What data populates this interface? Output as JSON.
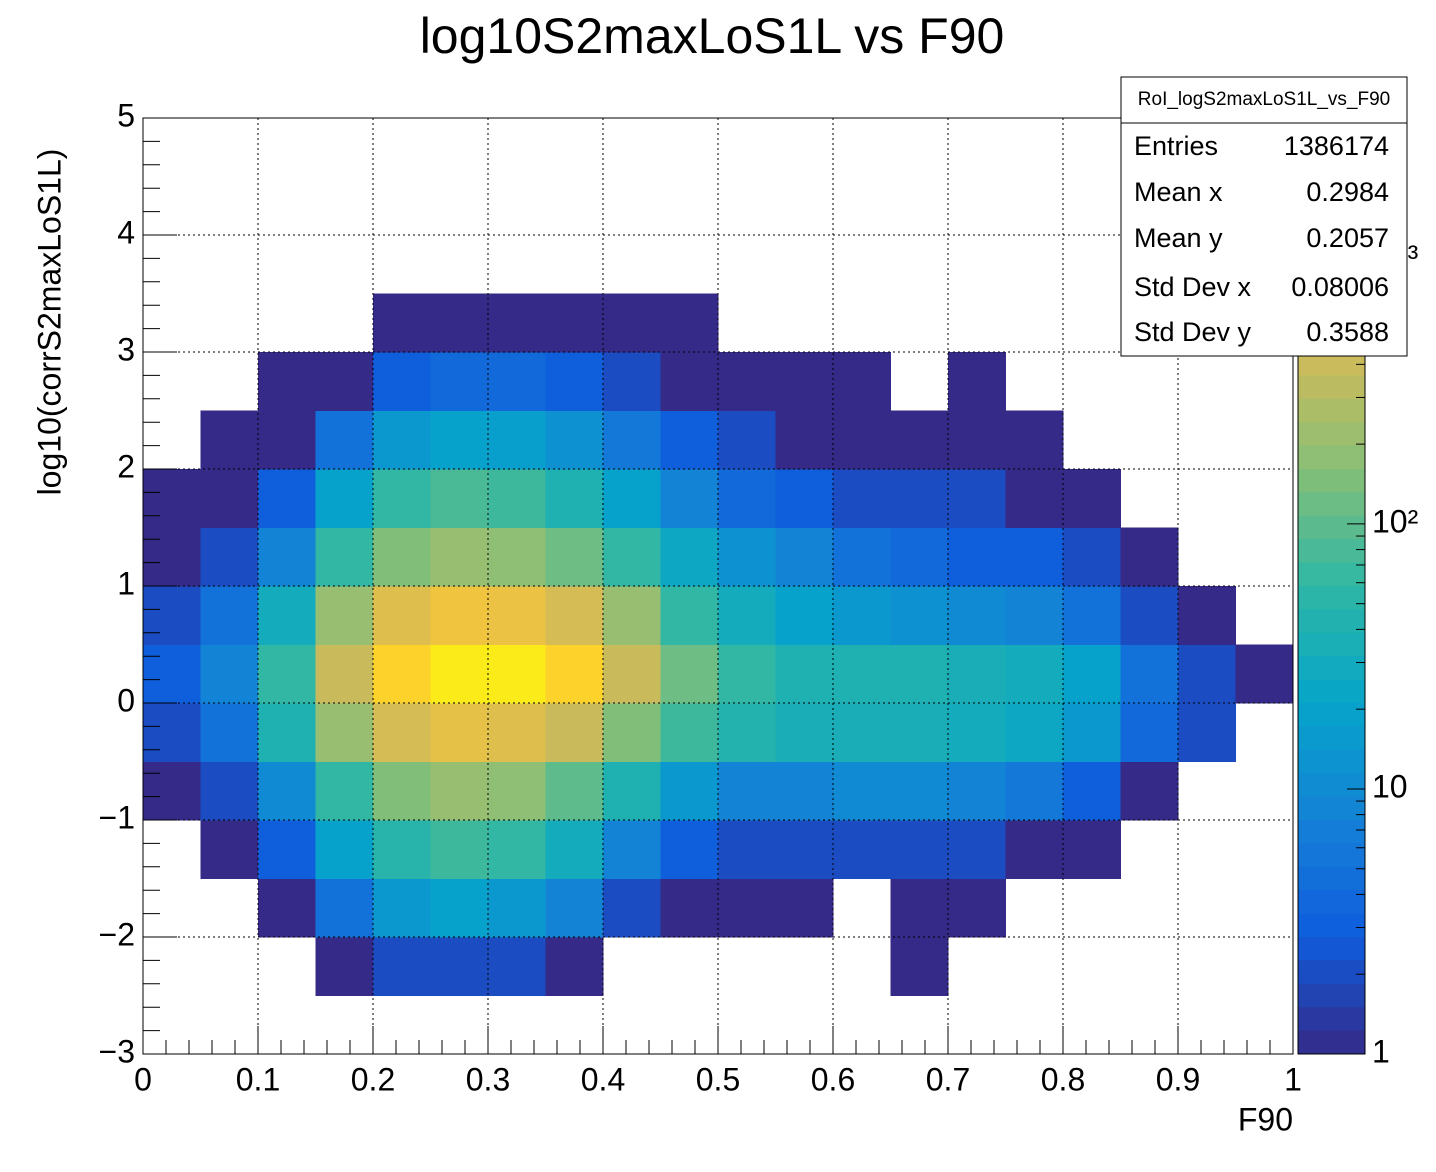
{
  "chart_data": {
    "type": "heatmap",
    "title": "log10S2maxLoS1L vs F90",
    "x_label": "F90",
    "y_label": "log10(corrS2maxLoS1L)",
    "xlim": [
      0,
      1
    ],
    "ylim": [
      -3,
      5
    ],
    "xticks": [
      0,
      0.1,
      0.2,
      0.3,
      0.4,
      0.5,
      0.6,
      0.7,
      0.8,
      0.9,
      1
    ],
    "yticks": [
      {
        "value": -3,
        "label": "−3"
      },
      {
        "value": -2,
        "label": "−2"
      },
      {
        "value": -1,
        "label": "−1"
      },
      0,
      1,
      2,
      3,
      4,
      5
    ],
    "grid": true,
    "zlim": [
      1,
      3400
    ],
    "zlog": true,
    "zticks": [
      1,
      10,
      {
        "value": 100,
        "label": "10²"
      },
      {
        "value": 1000,
        "label": "10³"
      }
    ],
    "palette": [
      "#352a87",
      "#0f5cdd",
      "#1481d6",
      "#06a4ca",
      "#2eb7a4",
      "#87bf77",
      "#d1bb59",
      "#fec832",
      "#f9fb0e"
    ],
    "xbins": [
      0,
      0.05,
      0.1,
      0.15,
      0.2,
      0.25,
      0.3,
      0.35,
      0.4,
      0.45,
      0.5,
      0.55,
      0.6,
      0.65,
      0.7,
      0.75,
      0.8,
      0.85,
      0.9,
      0.95,
      1
    ],
    "ybins": [
      -3,
      -2.5,
      -2,
      -1.5,
      -1,
      -0.5,
      0,
      0.5,
      1,
      1.5,
      2,
      2.5,
      3,
      3.5,
      4,
      4.5,
      5
    ],
    "z": [
      [
        null,
        null,
        null,
        null,
        null,
        null,
        null,
        null,
        null,
        null,
        null,
        null,
        null,
        null,
        null,
        null,
        null,
        null,
        null,
        null
      ],
      [
        null,
        null,
        null,
        1,
        2,
        2,
        2,
        1,
        null,
        null,
        null,
        null,
        null,
        1,
        null,
        null,
        null,
        null,
        null,
        null
      ],
      [
        null,
        null,
        1,
        5,
        15,
        20,
        15,
        8,
        2,
        1,
        1,
        1,
        null,
        1,
        1,
        null,
        null,
        null,
        null,
        null
      ],
      [
        null,
        1,
        3,
        20,
        50,
        70,
        60,
        30,
        8,
        3,
        2,
        2,
        2,
        2,
        2,
        1,
        1,
        null,
        null,
        null
      ],
      [
        1,
        2,
        10,
        60,
        150,
        200,
        180,
        100,
        40,
        15,
        8,
        8,
        10,
        10,
        8,
        6,
        3,
        1,
        null,
        null
      ],
      [
        2,
        5,
        40,
        200,
        500,
        700,
        600,
        400,
        150,
        70,
        45,
        35,
        35,
        35,
        30,
        25,
        15,
        4,
        2,
        null
      ],
      [
        3,
        8,
        60,
        400,
        1500,
        2500,
        2500,
        1500,
        400,
        120,
        60,
        40,
        40,
        40,
        35,
        30,
        20,
        5,
        2,
        1
      ],
      [
        2,
        5,
        30,
        200,
        600,
        900,
        800,
        500,
        200,
        60,
        30,
        20,
        15,
        12,
        10,
        8,
        5,
        2,
        1,
        null
      ],
      [
        1,
        2,
        8,
        60,
        150,
        200,
        180,
        120,
        60,
        25,
        12,
        8,
        5,
        4,
        3,
        3,
        2,
        1,
        null,
        null
      ],
      [
        1,
        1,
        3,
        20,
        60,
        80,
        70,
        40,
        20,
        8,
        4,
        3,
        2,
        2,
        2,
        1,
        1,
        null,
        null,
        null
      ],
      [
        null,
        1,
        1,
        5,
        15,
        20,
        18,
        12,
        6,
        3,
        2,
        1,
        1,
        1,
        1,
        1,
        null,
        null,
        null,
        null
      ],
      [
        null,
        null,
        1,
        1,
        3,
        4,
        4,
        3,
        2,
        1,
        1,
        1,
        1,
        null,
        1,
        null,
        null,
        null,
        null,
        null
      ],
      [
        null,
        null,
        null,
        null,
        1,
        1,
        1,
        1,
        1,
        1,
        null,
        null,
        null,
        null,
        null,
        null,
        null,
        null,
        null,
        null
      ],
      [
        null,
        null,
        null,
        null,
        null,
        null,
        null,
        null,
        null,
        null,
        null,
        null,
        null,
        null,
        null,
        null,
        null,
        null,
        null,
        null
      ],
      [
        null,
        null,
        null,
        null,
        null,
        null,
        null,
        null,
        null,
        null,
        null,
        null,
        null,
        null,
        null,
        null,
        null,
        null,
        null,
        null
      ],
      [
        null,
        null,
        null,
        null,
        null,
        null,
        null,
        null,
        null,
        null,
        null,
        null,
        null,
        null,
        null,
        null,
        null,
        null,
        null,
        null
      ]
    ],
    "stats": {
      "name": "RoI_logS2maxLoS1L_vs_F90",
      "rows": [
        {
          "label": "Entries",
          "value": 1386174
        },
        {
          "label": "Mean x",
          "value": 0.2984
        },
        {
          "label": "Mean y",
          "value": 0.2057
        },
        {
          "label": "Std Dev x",
          "value": 0.08006
        },
        {
          "label": "Std Dev y",
          "value": 0.3588
        }
      ]
    }
  }
}
